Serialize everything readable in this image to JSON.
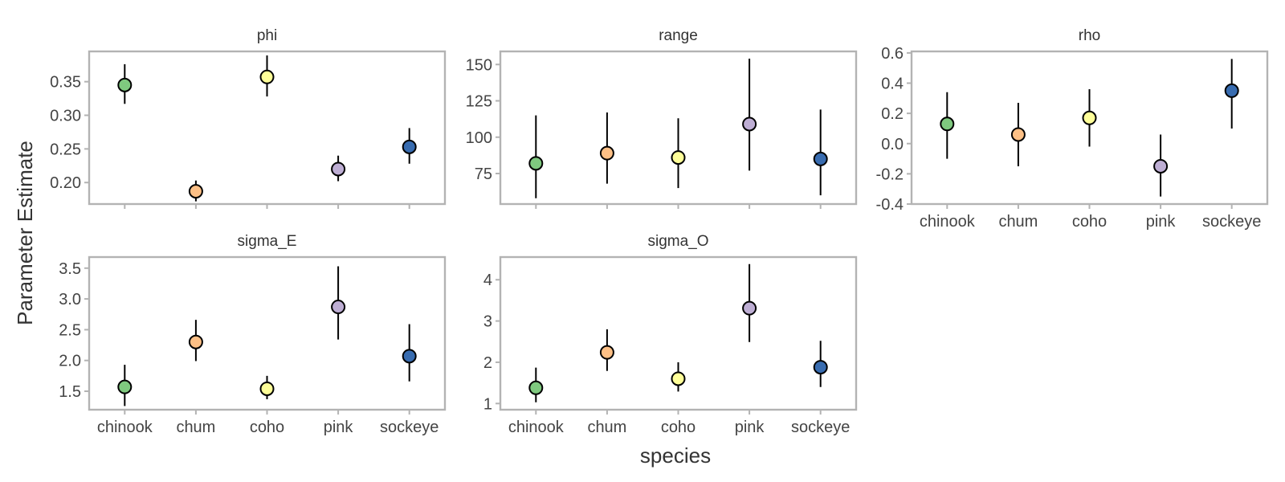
{
  "chart_data": {
    "type": "scatter",
    "xlabel": "species",
    "ylabel": "Parameter Estimate",
    "categories": [
      "chinook",
      "chum",
      "coho",
      "pink",
      "sockeye"
    ],
    "colors": {
      "chinook": "#7fc97f",
      "chum": "#fdc086",
      "coho": "#ffff99",
      "pink": "#beaed4",
      "sockeye": "#386cb0"
    },
    "panels": [
      {
        "title": "phi",
        "ylim": [
          0.168,
          0.395
        ],
        "yticks": [
          0.2,
          0.25,
          0.3,
          0.35
        ],
        "ytick_labels": [
          "0.20",
          "0.25",
          "0.30",
          "0.35"
        ],
        "points": [
          {
            "species": "chinook",
            "estimate": 0.345,
            "lower": 0.317,
            "upper": 0.376
          },
          {
            "species": "chum",
            "estimate": 0.187,
            "lower": 0.172,
            "upper": 0.203
          },
          {
            "species": "coho",
            "estimate": 0.357,
            "lower": 0.328,
            "upper": 0.389
          },
          {
            "species": "pink",
            "estimate": 0.22,
            "lower": 0.202,
            "upper": 0.24
          },
          {
            "species": "sockeye",
            "estimate": 0.253,
            "lower": 0.228,
            "upper": 0.281
          }
        ]
      },
      {
        "title": "range",
        "ylim": [
          54,
          159
        ],
        "yticks": [
          75,
          100,
          125,
          150
        ],
        "ytick_labels": [
          "75",
          "100",
          "125",
          "150"
        ],
        "points": [
          {
            "species": "chinook",
            "estimate": 82,
            "lower": 58,
            "upper": 115
          },
          {
            "species": "chum",
            "estimate": 89,
            "lower": 68,
            "upper": 117
          },
          {
            "species": "coho",
            "estimate": 86,
            "lower": 65,
            "upper": 113
          },
          {
            "species": "pink",
            "estimate": 109,
            "lower": 77,
            "upper": 154
          },
          {
            "species": "sockeye",
            "estimate": 85,
            "lower": 60,
            "upper": 119
          }
        ]
      },
      {
        "title": "rho",
        "ylim": [
          -0.4,
          0.61
        ],
        "yticks": [
          -0.4,
          -0.2,
          0.0,
          0.2,
          0.4,
          0.6
        ],
        "ytick_labels": [
          "-0.4",
          "-0.2",
          "0.0",
          "0.2",
          "0.4",
          "0.6"
        ],
        "points": [
          {
            "species": "chinook",
            "estimate": 0.13,
            "lower": -0.1,
            "upper": 0.34
          },
          {
            "species": "chum",
            "estimate": 0.06,
            "lower": -0.15,
            "upper": 0.27
          },
          {
            "species": "coho",
            "estimate": 0.17,
            "lower": -0.02,
            "upper": 0.36
          },
          {
            "species": "pink",
            "estimate": -0.15,
            "lower": -0.35,
            "upper": 0.06
          },
          {
            "species": "sockeye",
            "estimate": 0.35,
            "lower": 0.1,
            "upper": 0.56
          }
        ]
      },
      {
        "title": "sigma_E",
        "ylim": [
          1.2,
          3.68
        ],
        "yticks": [
          1.5,
          2.0,
          2.5,
          3.0,
          3.5
        ],
        "ytick_labels": [
          "1.5",
          "2.0",
          "2.5",
          "3.0",
          "3.5"
        ],
        "points": [
          {
            "species": "chinook",
            "estimate": 1.57,
            "lower": 1.26,
            "upper": 1.93
          },
          {
            "species": "chum",
            "estimate": 2.3,
            "lower": 1.99,
            "upper": 2.66
          },
          {
            "species": "coho",
            "estimate": 1.54,
            "lower": 1.37,
            "upper": 1.75
          },
          {
            "species": "pink",
            "estimate": 2.87,
            "lower": 2.34,
            "upper": 3.53
          },
          {
            "species": "sockeye",
            "estimate": 2.07,
            "lower": 1.66,
            "upper": 2.59
          }
        ]
      },
      {
        "title": "sigma_O",
        "ylim": [
          0.85,
          4.55
        ],
        "yticks": [
          1,
          2,
          3,
          4
        ],
        "ytick_labels": [
          "1",
          "2",
          "3",
          "4"
        ],
        "points": [
          {
            "species": "chinook",
            "estimate": 1.38,
            "lower": 1.03,
            "upper": 1.87
          },
          {
            "species": "chum",
            "estimate": 2.24,
            "lower": 1.79,
            "upper": 2.8
          },
          {
            "species": "coho",
            "estimate": 1.6,
            "lower": 1.29,
            "upper": 2.0
          },
          {
            "species": "pink",
            "estimate": 3.31,
            "lower": 2.49,
            "upper": 4.38
          },
          {
            "species": "sockeye",
            "estimate": 1.88,
            "lower": 1.4,
            "upper": 2.52
          }
        ]
      }
    ],
    "grid": false,
    "legend": "none"
  }
}
